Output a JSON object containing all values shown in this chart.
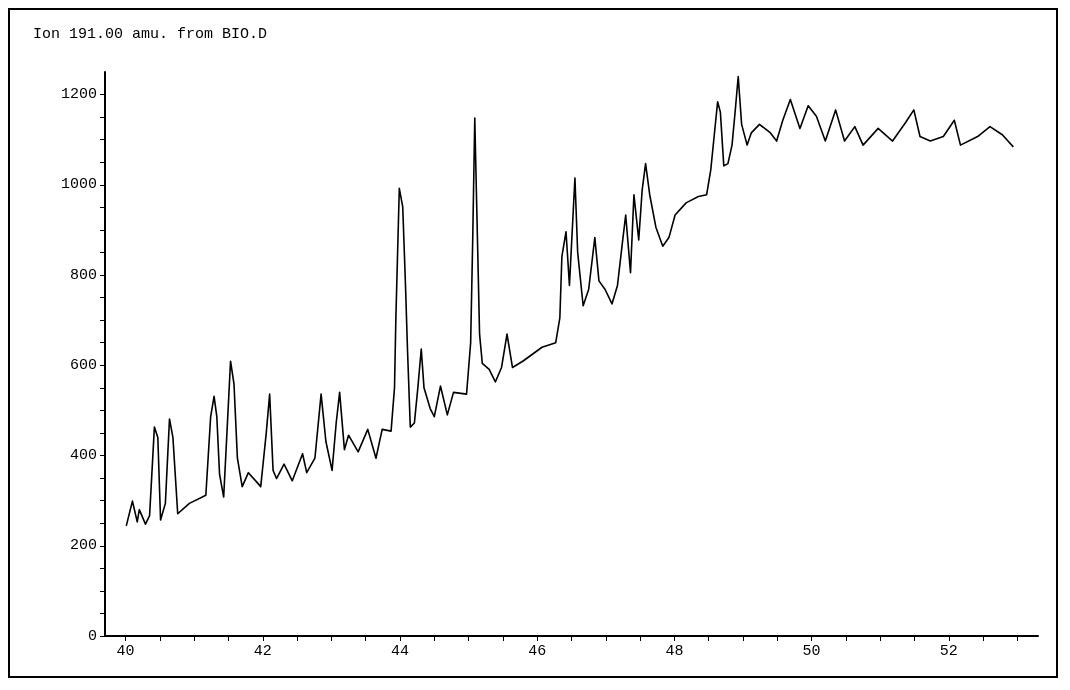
{
  "chart_data": {
    "type": "line",
    "title": "Ion 191.00 amu. from BIO.D",
    "color": "#000000",
    "grid": false,
    "marker": "none",
    "line_style": "solid",
    "xlim": [
      39.7,
      53.3
    ],
    "ylim": [
      0,
      1250
    ],
    "xticks": [
      40,
      {
        "value": 40.5,
        "label": null
      },
      {
        "value": 41,
        "label": null
      },
      {
        "value": 41.5,
        "label": null
      },
      42,
      {
        "value": 42.5,
        "label": null
      },
      {
        "value": 43,
        "label": null
      },
      {
        "value": 43.5,
        "label": null
      },
      44,
      {
        "value": 44.5,
        "label": null
      },
      {
        "value": 45,
        "label": null
      },
      {
        "value": 45.5,
        "label": null
      },
      46,
      {
        "value": 46.5,
        "label": null
      },
      {
        "value": 47,
        "label": null
      },
      {
        "value": 47.5,
        "label": null
      },
      48,
      {
        "value": 48.5,
        "label": null
      },
      {
        "value": 49,
        "label": null
      },
      {
        "value": 49.5,
        "label": null
      },
      50,
      {
        "value": 50.5,
        "label": null
      },
      {
        "value": 51,
        "label": null
      },
      {
        "value": 51.5,
        "label": null
      },
      52,
      {
        "value": 52.5,
        "label": null
      },
      {
        "value": 53,
        "label": null
      }
    ],
    "yticks": [
      0,
      {
        "value": 50,
        "label": null
      },
      {
        "value": 100,
        "label": null
      },
      {
        "value": 150,
        "label": null
      },
      200,
      {
        "value": 250,
        "label": null
      },
      {
        "value": 300,
        "label": null
      },
      {
        "value": 350,
        "label": null
      },
      400,
      {
        "value": 450,
        "label": null
      },
      {
        "value": 500,
        "label": null
      },
      {
        "value": 550,
        "label": null
      },
      600,
      {
        "value": 650,
        "label": null
      },
      {
        "value": 700,
        "label": null
      },
      {
        "value": 750,
        "label": null
      },
      800,
      {
        "value": 850,
        "label": null
      },
      {
        "value": 900,
        "label": null
      },
      {
        "value": 950,
        "label": null
      },
      1000,
      {
        "value": 1050,
        "label": null
      },
      {
        "value": 1100,
        "label": null
      },
      {
        "value": 1150,
        "label": null
      },
      1200
    ],
    "x": [
      40.01,
      40.1,
      40.17,
      40.2,
      40.29,
      40.35,
      40.42,
      40.47,
      40.51,
      40.58,
      40.64,
      40.69,
      40.76,
      40.93,
      41.17,
      41.24,
      41.29,
      41.33,
      41.37,
      41.43,
      41.48,
      41.53,
      41.58,
      41.63,
      41.7,
      41.79,
      41.97,
      42.05,
      42.1,
      42.15,
      42.2,
      42.31,
      42.43,
      42.58,
      42.64,
      42.76,
      42.85,
      42.92,
      43.01,
      43.07,
      43.12,
      43.19,
      43.25,
      43.39,
      43.53,
      43.65,
      43.74,
      43.87,
      43.92,
      43.94,
      43.99,
      44.04,
      44.08,
      44.11,
      44.15,
      44.21,
      44.26,
      44.31,
      44.35,
      44.44,
      44.5,
      44.59,
      44.69,
      44.78,
      44.97,
      45.03,
      45.06,
      45.09,
      45.12,
      45.16,
      45.2,
      45.3,
      45.39,
      45.48,
      45.56,
      45.64,
      45.8,
      46.07,
      46.27,
      46.33,
      46.36,
      46.42,
      46.47,
      46.55,
      46.59,
      46.67,
      46.75,
      46.84,
      46.9,
      46.99,
      47.09,
      47.17,
      47.24,
      47.29,
      47.36,
      47.41,
      47.48,
      47.53,
      47.58,
      47.64,
      47.73,
      47.83,
      47.92,
      48.01,
      48.17,
      48.35,
      48.47,
      48.53,
      48.63,
      48.67,
      48.72,
      48.78,
      48.84,
      48.89,
      48.93,
      48.98,
      49.06,
      49.12,
      49.24,
      49.4,
      49.49,
      49.58,
      49.69,
      49.83,
      49.95,
      50.07,
      50.2,
      50.35,
      50.48,
      50.63,
      50.75,
      50.97,
      51.18,
      51.37,
      51.49,
      51.58,
      51.73,
      51.92,
      52.08,
      52.17,
      52.42,
      52.6,
      52.78,
      52.94
    ],
    "values": [
      244,
      299,
      253,
      280,
      248,
      267,
      463,
      440,
      257,
      294,
      481,
      440,
      271,
      294,
      312,
      486,
      531,
      486,
      358,
      308,
      458,
      609,
      559,
      394,
      331,
      362,
      331,
      449,
      536,
      367,
      349,
      381,
      344,
      404,
      362,
      394,
      536,
      431,
      367,
      472,
      540,
      413,
      445,
      408,
      458,
      394,
      458,
      454,
      550,
      705,
      992,
      951,
      778,
      632,
      463,
      472,
      550,
      636,
      550,
      504,
      486,
      554,
      490,
      540,
      536,
      650,
      878,
      1148,
      942,
      669,
      604,
      591,
      563,
      595,
      669,
      595,
      610,
      640,
      650,
      705,
      841,
      896,
      777,
      1015,
      850,
      732,
      768,
      883,
      787,
      768,
      736,
      777,
      869,
      933,
      805,
      978,
      878,
      988,
      1047,
      978,
      906,
      864,
      883,
      933,
      960,
      974,
      978,
      1033,
      1184,
      1161,
      1042,
      1047,
      1088,
      1170,
      1240,
      1134,
      1088,
      1115,
      1134,
      1115,
      1097,
      1143,
      1189,
      1125,
      1175,
      1152,
      1097,
      1166,
      1097,
      1129,
      1088,
      1125,
      1097,
      1138,
      1166,
      1107,
      1097,
      1107,
      1143,
      1088,
      1107,
      1129,
      1111,
      1084
    ]
  }
}
